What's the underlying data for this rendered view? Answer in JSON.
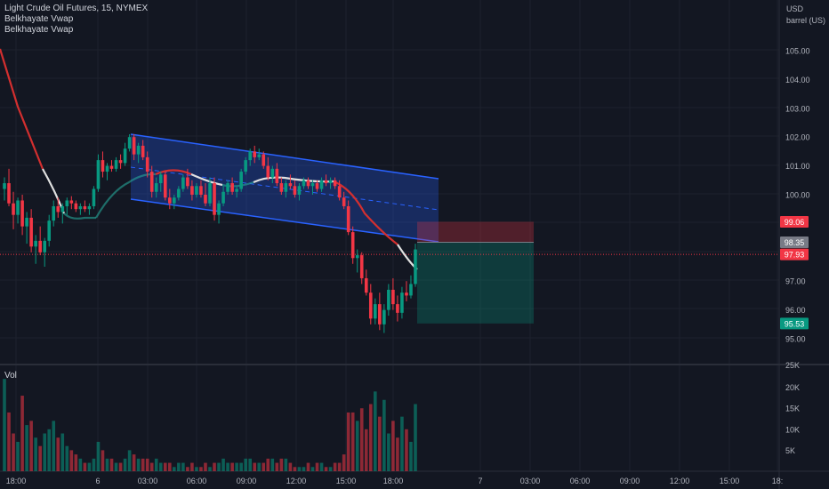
{
  "legend": {
    "title": "Light Crude Oil Futures, 15, NYMEX",
    "indicators": [
      "Belkhayate Vwap",
      "Belkhayate Vwap"
    ]
  },
  "volume_label": "Vol",
  "price_axis_unit": [
    "USD",
    "barrel (US)"
  ],
  "price_badges": [
    {
      "value": "99.06",
      "color": "#f23645"
    },
    {
      "value": "98.35",
      "color": "#787b86"
    },
    {
      "value": "97.93",
      "color": "#f23645"
    },
    {
      "value": "95.53",
      "color": "#089981"
    }
  ],
  "chart_data": {
    "type": "candlestick",
    "symbol": "Light Crude Oil Futures",
    "interval": "15",
    "exchange": "NYMEX",
    "price_ticks": [
      "105.00",
      "104.00",
      "103.00",
      "102.00",
      "101.00",
      "100.00",
      "97.00",
      "96.00",
      "95.00"
    ],
    "volume_ticks": [
      "20K",
      "15K",
      "10K",
      "5K"
    ],
    "time_ticks": [
      "18:00",
      "6",
      "03:00",
      "06:00",
      "09:00",
      "12:00",
      "15:00",
      "18:00",
      "7",
      "03:00",
      "06:00",
      "09:00",
      "12:00",
      "15:00",
      "18:"
    ],
    "price_range": [
      94.0,
      106.5
    ],
    "volume_range": [
      0,
      25000
    ],
    "candles": [
      [
        100.2,
        100.6,
        99.8,
        100.4
      ],
      [
        100.4,
        100.9,
        99.6,
        99.7
      ],
      [
        99.7,
        100.1,
        98.8,
        99.3
      ],
      [
        99.3,
        99.9,
        99.0,
        99.8
      ],
      [
        99.8,
        100.0,
        98.6,
        98.9
      ],
      [
        98.9,
        99.4,
        98.3,
        99.2
      ],
      [
        99.2,
        99.5,
        98.0,
        98.2
      ],
      [
        98.2,
        98.6,
        97.6,
        98.4
      ],
      [
        98.4,
        98.9,
        97.9,
        98.0
      ],
      [
        98.0,
        98.5,
        97.5,
        98.4
      ],
      [
        98.4,
        99.3,
        98.2,
        99.1
      ],
      [
        99.1,
        99.8,
        98.9,
        99.6
      ],
      [
        99.6,
        99.9,
        99.2,
        99.4
      ],
      [
        99.4,
        99.7,
        99.0,
        99.6
      ],
      [
        99.6,
        99.9,
        99.3,
        99.8
      ],
      [
        99.8,
        99.95,
        99.5,
        99.7
      ],
      [
        99.7,
        99.8,
        99.4,
        99.5
      ],
      [
        99.5,
        99.7,
        99.3,
        99.6
      ],
      [
        99.6,
        99.8,
        99.4,
        99.5
      ],
      [
        99.5,
        99.7,
        99.3,
        99.6
      ],
      [
        99.6,
        100.3,
        99.5,
        100.2
      ],
      [
        100.2,
        101.4,
        100.1,
        101.2
      ],
      [
        101.2,
        101.5,
        100.6,
        100.8
      ],
      [
        100.8,
        101.1,
        100.5,
        101.0
      ],
      [
        101.0,
        101.2,
        100.8,
        100.9
      ],
      [
        100.9,
        101.3,
        100.8,
        101.2
      ],
      [
        101.2,
        101.4,
        100.9,
        101.1
      ],
      [
        101.1,
        101.8,
        101.0,
        101.6
      ],
      [
        101.6,
        102.1,
        101.5,
        102.0
      ],
      [
        102.0,
        102.1,
        101.2,
        101.4
      ],
      [
        101.4,
        101.8,
        101.1,
        101.7
      ],
      [
        101.7,
        101.9,
        101.2,
        101.3
      ],
      [
        101.3,
        101.5,
        100.6,
        100.8
      ],
      [
        100.8,
        101.0,
        99.9,
        100.1
      ],
      [
        100.1,
        100.6,
        99.9,
        100.4
      ],
      [
        100.4,
        100.8,
        100.1,
        100.7
      ],
      [
        100.7,
        100.8,
        99.8,
        99.9
      ],
      [
        99.9,
        100.2,
        99.5,
        99.7
      ],
      [
        99.7,
        100.0,
        99.5,
        99.9
      ],
      [
        99.9,
        100.3,
        99.8,
        100.2
      ],
      [
        100.2,
        100.7,
        100.1,
        100.6
      ],
      [
        100.6,
        100.9,
        100.2,
        100.3
      ],
      [
        100.3,
        100.5,
        99.8,
        100.0
      ],
      [
        100.0,
        100.4,
        99.9,
        100.3
      ],
      [
        100.3,
        100.5,
        99.9,
        100.0
      ],
      [
        100.0,
        100.4,
        99.6,
        99.7
      ],
      [
        99.7,
        100.6,
        99.6,
        100.4
      ],
      [
        100.4,
        100.6,
        99.1,
        99.3
      ],
      [
        99.3,
        99.8,
        99.0,
        99.7
      ],
      [
        99.7,
        100.3,
        99.6,
        100.1
      ],
      [
        100.1,
        100.5,
        100.0,
        100.4
      ],
      [
        100.4,
        100.6,
        100.0,
        100.1
      ],
      [
        100.1,
        100.3,
        99.9,
        100.2
      ],
      [
        100.2,
        100.9,
        100.1,
        100.8
      ],
      [
        100.8,
        101.3,
        100.7,
        101.2
      ],
      [
        101.2,
        101.6,
        101.0,
        101.5
      ],
      [
        101.5,
        101.7,
        101.1,
        101.3
      ],
      [
        101.3,
        101.6,
        101.2,
        101.4
      ],
      [
        101.4,
        101.5,
        100.9,
        101.0
      ],
      [
        101.0,
        101.3,
        100.5,
        100.6
      ],
      [
        100.6,
        101.0,
        100.4,
        100.9
      ],
      [
        100.9,
        101.1,
        100.3,
        100.4
      ],
      [
        100.4,
        100.6,
        100.0,
        100.1
      ],
      [
        100.1,
        100.5,
        99.9,
        100.4
      ],
      [
        100.4,
        100.7,
        100.2,
        100.3
      ],
      [
        100.3,
        100.5,
        99.9,
        100.0
      ],
      [
        100.0,
        100.4,
        99.8,
        100.3
      ],
      [
        100.3,
        100.6,
        100.2,
        100.5
      ],
      [
        100.5,
        100.6,
        100.2,
        100.3
      ],
      [
        100.3,
        100.5,
        100.0,
        100.4
      ],
      [
        100.4,
        100.5,
        100.1,
        100.2
      ],
      [
        100.2,
        100.6,
        100.1,
        100.5
      ],
      [
        100.5,
        100.7,
        100.3,
        100.4
      ],
      [
        100.4,
        100.6,
        100.2,
        100.5
      ],
      [
        100.5,
        100.6,
        100.2,
        100.3
      ],
      [
        100.3,
        100.5,
        99.8,
        99.9
      ],
      [
        99.9,
        100.1,
        99.5,
        99.6
      ],
      [
        99.6,
        99.8,
        98.6,
        98.7
      ],
      [
        98.7,
        98.9,
        97.6,
        97.8
      ],
      [
        97.8,
        98.1,
        97.3,
        97.9
      ],
      [
        97.9,
        98.0,
        96.9,
        97.1
      ],
      [
        97.1,
        97.4,
        96.5,
        96.6
      ],
      [
        96.6,
        96.9,
        95.5,
        95.7
      ],
      [
        95.7,
        96.4,
        95.5,
        96.2
      ],
      [
        96.2,
        96.6,
        95.3,
        95.5
      ],
      [
        95.5,
        96.2,
        95.2,
        96.0
      ],
      [
        96.0,
        96.9,
        95.8,
        96.7
      ],
      [
        96.7,
        97.1,
        96.0,
        96.2
      ],
      [
        96.2,
        96.5,
        95.6,
        95.9
      ],
      [
        95.9,
        96.8,
        95.7,
        96.6
      ],
      [
        96.6,
        97.0,
        96.3,
        96.5
      ],
      [
        96.5,
        97.2,
        96.4,
        96.9
      ],
      [
        96.9,
        98.3,
        96.8,
        98.1
      ]
    ],
    "volumes": [
      22,
      14,
      9,
      7,
      18,
      11,
      12,
      8,
      6,
      9,
      10,
      12,
      8,
      9,
      6,
      5,
      4,
      3,
      2,
      2,
      3,
      7,
      5,
      3,
      3,
      2,
      2,
      3,
      5,
      4,
      3,
      3,
      3,
      2,
      3,
      2,
      2,
      2,
      1,
      2,
      2,
      1,
      2,
      1,
      1,
      2,
      1,
      2,
      2,
      3,
      2,
      2,
      2,
      2,
      3,
      3,
      2,
      2,
      2,
      3,
      3,
      2,
      3,
      3,
      2,
      1,
      1,
      1,
      2,
      1,
      2,
      2,
      1,
      1,
      2,
      2,
      4,
      14,
      14,
      12,
      15,
      10,
      16,
      19,
      13,
      17,
      9,
      12,
      8,
      13,
      10,
      7,
      16
    ]
  }
}
